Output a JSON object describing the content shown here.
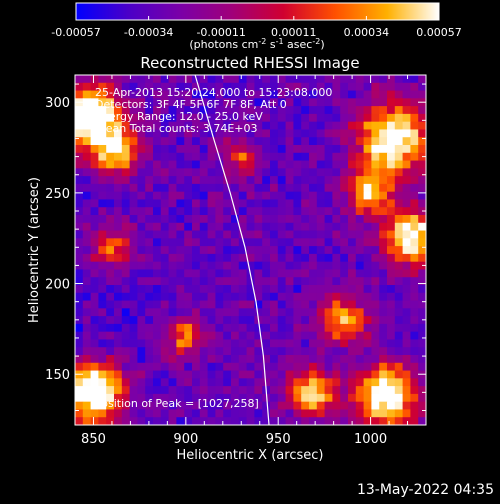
{
  "chart_data": {
    "type": "heatmap",
    "title": "Reconstructed RHESSI Image",
    "xlabel": "Heliocentric X (arcsec)",
    "ylabel": "Heliocentric Y (arcsec)",
    "xlim": [
      840,
      1030
    ],
    "ylim": [
      122,
      315
    ],
    "x_ticks": [
      850,
      900,
      950,
      1000
    ],
    "y_ticks": [
      150,
      200,
      250,
      300
    ],
    "colorbar": {
      "label_prefix": "(photons cm",
      "label_exp1": "-2",
      "label_mid": " s",
      "label_exp2": "-1",
      "label_mid2": " asec",
      "label_exp3": "-2",
      "label_suffix": ")",
      "range": [
        -0.00057,
        0.00057
      ],
      "ticks": [
        "-0.00057",
        "-0.00034",
        "-0.00011",
        "0.00011",
        "0.00034",
        "0.00057"
      ],
      "colors": [
        "#0000ff",
        "#4a00c8",
        "#7a00a8",
        "#a0007a",
        "#d00030",
        "#ff5000",
        "#ffb000",
        "#ffffff"
      ]
    },
    "annotations": [
      "25-Apr-2013 15:20:24.000 to 15:23:08.000",
      "Detectors: 3F 4F 5F 6F 7F 8F, Att 0",
      "Energy Range: 12.0 - 25.0 keV",
      "Clean    Total counts: 3.74E+03"
    ],
    "peak_label": "Position of Peak = [1027,258]",
    "peak": [
      1027,
      258
    ],
    "limb_curve_x": [
      905,
      915,
      924,
      932,
      938,
      942,
      945
    ],
    "limb_curve_y": [
      315,
      280,
      250,
      220,
      190,
      160,
      122
    ],
    "bright_regions": [
      {
        "x": 848,
        "y": 292,
        "r": 16,
        "v": 1.0
      },
      {
        "x": 862,
        "y": 272,
        "r": 12,
        "v": 0.7
      },
      {
        "x": 1012,
        "y": 280,
        "r": 18,
        "v": 0.95
      },
      {
        "x": 1022,
        "y": 225,
        "r": 14,
        "v": 0.9
      },
      {
        "x": 1000,
        "y": 250,
        "r": 12,
        "v": 0.7
      },
      {
        "x": 850,
        "y": 140,
        "r": 16,
        "v": 1.0
      },
      {
        "x": 1008,
        "y": 138,
        "r": 16,
        "v": 0.95
      },
      {
        "x": 968,
        "y": 140,
        "r": 12,
        "v": 0.75
      },
      {
        "x": 900,
        "y": 170,
        "r": 10,
        "v": 0.55
      },
      {
        "x": 985,
        "y": 180,
        "r": 12,
        "v": 0.7
      },
      {
        "x": 860,
        "y": 220,
        "r": 12,
        "v": 0.55
      },
      {
        "x": 930,
        "y": 270,
        "r": 9,
        "v": 0.45
      }
    ]
  },
  "footer_date": "13-May-2022 04:35"
}
